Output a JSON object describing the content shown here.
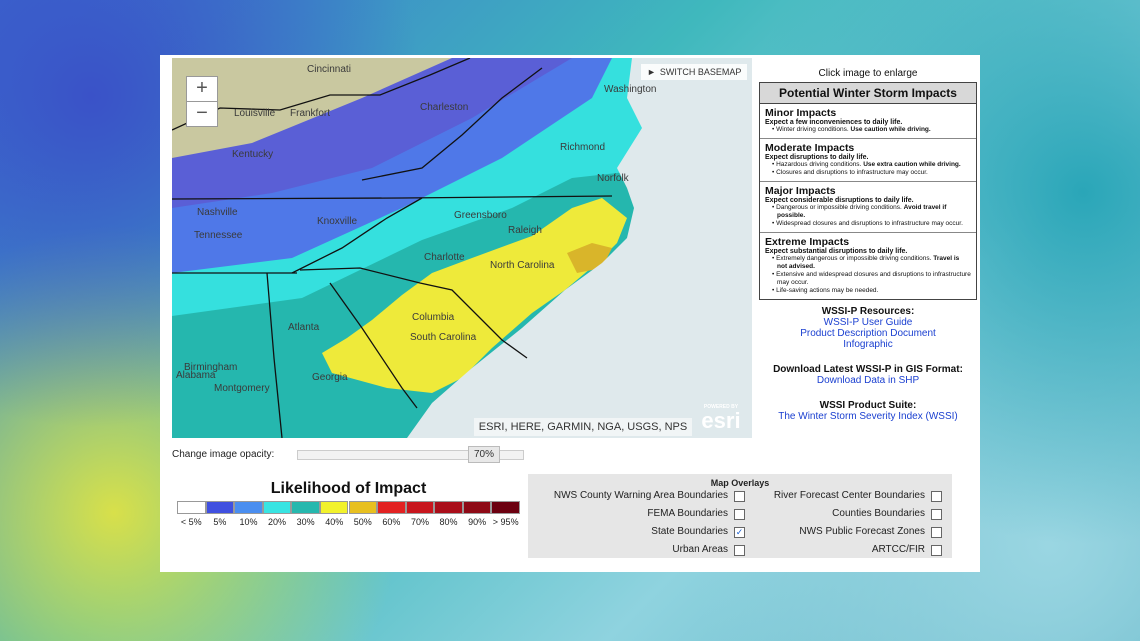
{
  "map": {
    "zoom_in": "+",
    "zoom_out": "−",
    "switch_basemap": "SWITCH BASEMAP",
    "attribution": "ESRI, HERE, GARMIN, NGA, USGS, NPS",
    "powered_by": "POWERED BY",
    "logo": "esri",
    "places": [
      "Cincinnati",
      "Frankfort",
      "Louisville",
      "Charleston",
      "Kentucky",
      "Nashville",
      "Tennessee",
      "Knoxville",
      "Greensboro",
      "Raleigh",
      "Richmond",
      "Norfolk",
      "Charlotte",
      "North Carolina",
      "Columbia",
      "South Carolina",
      "Atlanta",
      "Birmingham",
      "Alabama",
      "Montgomery",
      "Georgia",
      "Washington"
    ]
  },
  "opacity": {
    "label": "Change image opacity:",
    "value": "70%"
  },
  "legend": {
    "title": "Likelihood of Impact",
    "items": [
      {
        "label": "< 5%",
        "color": "#ffffff"
      },
      {
        "label": "5%",
        "color": "#4050e0"
      },
      {
        "label": "10%",
        "color": "#4a8ef0"
      },
      {
        "label": "20%",
        "color": "#38e4e2"
      },
      {
        "label": "30%",
        "color": "#26b8ae"
      },
      {
        "label": "40%",
        "color": "#f2f22c"
      },
      {
        "label": "50%",
        "color": "#e8c020"
      },
      {
        "label": "60%",
        "color": "#e22222"
      },
      {
        "label": "70%",
        "color": "#c8161e"
      },
      {
        "label": "80%",
        "color": "#aa0e1a"
      },
      {
        "label": "90%",
        "color": "#8e0a16"
      },
      {
        "label": "> 95%",
        "color": "#6c0010"
      }
    ]
  },
  "overlays": {
    "title": "Map Overlays",
    "items": [
      {
        "label": "NWS County Warning Area Boundaries",
        "checked": false
      },
      {
        "label": "River Forecast Center Boundaries",
        "checked": false
      },
      {
        "label": "FEMA Boundaries",
        "checked": false
      },
      {
        "label": "Counties Boundaries",
        "checked": false
      },
      {
        "label": "State Boundaries",
        "checked": true
      },
      {
        "label": "NWS Public Forecast Zones",
        "checked": false
      },
      {
        "label": "Urban Areas",
        "checked": false
      },
      {
        "label": "ARTCC/FIR",
        "checked": false
      }
    ]
  },
  "sidebar": {
    "enlarge": "Click image to enlarge",
    "box_title": "Potential Winter Storm Impacts",
    "sections": [
      {
        "title": "Minor Impacts",
        "summary": "Expect a few inconveniences to daily life.",
        "bullets": [
          {
            "text": "Winter driving conditions.",
            "emphasis": "Use caution while driving."
          }
        ]
      },
      {
        "title": "Moderate Impacts",
        "summary": "Expect disruptions to daily life.",
        "bullets": [
          {
            "text": "Hazardous driving conditions.",
            "emphasis": "Use extra caution while driving."
          },
          "Closures and disruptions to infrastructure may occur."
        ]
      },
      {
        "title": "Major Impacts",
        "summary": "Expect considerable disruptions to daily life.",
        "bullets": [
          {
            "text": "Dangerous or impossible driving conditions.",
            "emphasis": "Avoid travel if possible."
          },
          "Widespread closures and disruptions to infrastructure may occur."
        ]
      },
      {
        "title": "Extreme Impacts",
        "summary": "Expect substantial disruptions to daily life.",
        "bullets": [
          {
            "text": "Extremely dangerous or impossible driving conditions.",
            "emphasis": "Travel is not advised."
          },
          "Extensive and widespread closures and disruptions to infrastructure may occur.",
          "Life-saving actions may be needed."
        ]
      }
    ],
    "resources": {
      "title": "WSSI-P Resources:",
      "links": [
        "WSSI-P User Guide",
        "Product Description Document",
        "Infographic"
      ]
    },
    "download": {
      "title": "Download Latest WSSI-P in GIS Format:",
      "link": "Download Data in SHP"
    },
    "suite": {
      "title": "WSSI Product Suite:",
      "link": "The Winter Storm Severity Index (WSSI)"
    }
  }
}
